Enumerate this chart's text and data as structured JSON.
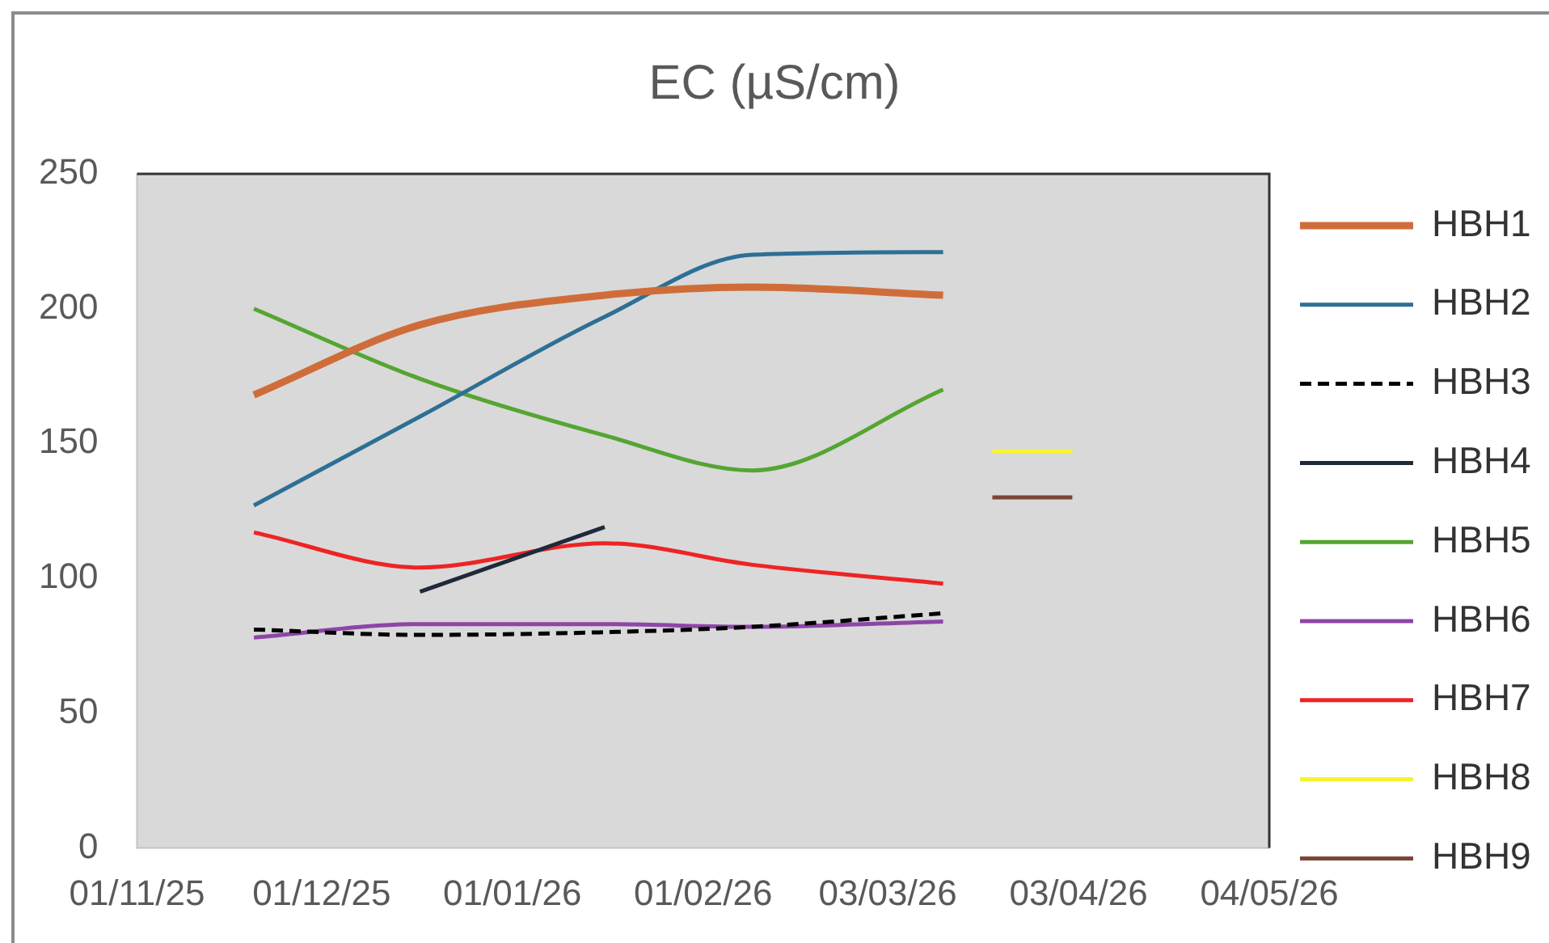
{
  "chart_data": {
    "type": "line",
    "title": "EC (µS/cm)",
    "x": [
      "2025-11-20",
      "2025-12-17",
      "2026-01-16",
      "2026-02-09",
      "2026-03-12"
    ],
    "series": [
      {
        "name": "HBH1",
        "color": "#cf6d3a",
        "values": [
          168,
          194,
          205,
          208,
          205
        ]
      },
      {
        "name": "HBH2",
        "color": "#2e6f95",
        "values": [
          127,
          160,
          197,
          220,
          221
        ]
      },
      {
        "name": "HBH3",
        "color": "#000000",
        "values": [
          81,
          79,
          80,
          82,
          87
        ],
        "line_style": "dashed"
      },
      {
        "name": "HBH4",
        "color": "#1e2a3a",
        "x": [
          "2025-12-17",
          "2026-01-16"
        ],
        "values": [
          95,
          119
        ]
      },
      {
        "name": "HBH5",
        "color": "#55a532",
        "values": [
          200,
          174,
          153,
          140,
          170
        ]
      },
      {
        "name": "HBH6",
        "color": "#8e45a8",
        "values": [
          78,
          83,
          83,
          82,
          84
        ]
      },
      {
        "name": "HBH7",
        "color": "#ee2424",
        "values": [
          117,
          104,
          113,
          105,
          98
        ]
      },
      {
        "name": "HBH8",
        "color": "#f5f52f",
        "x": [
          "2026-03-20",
          "2026-04-02"
        ],
        "values": [
          147,
          147
        ]
      },
      {
        "name": "HBH9",
        "color": "#7a4636",
        "x": [
          "2026-03-20",
          "2026-04-02"
        ],
        "values": [
          130,
          130
        ]
      }
    ],
    "xlim": [
      "2025-11-01",
      "2026-05-04"
    ],
    "xticks": [
      {
        "value": "2025-11-01",
        "label": "01/11/25"
      },
      {
        "value": "2025-12-01",
        "label": "01/12/25"
      },
      {
        "value": "2026-01-01",
        "label": "01/01/26"
      },
      {
        "value": "2026-02-01",
        "label": "01/02/26"
      },
      {
        "value": "2026-03-03",
        "label": "03/03/26"
      },
      {
        "value": "2026-04-03",
        "label": "03/04/26"
      },
      {
        "value": "2026-05-04",
        "label": "04/05/26"
      }
    ],
    "ylim": [
      0,
      250
    ],
    "yticks": [
      0,
      50,
      100,
      150,
      200,
      250
    ],
    "legend": "right",
    "marker": "none",
    "line_style": "solid"
  }
}
